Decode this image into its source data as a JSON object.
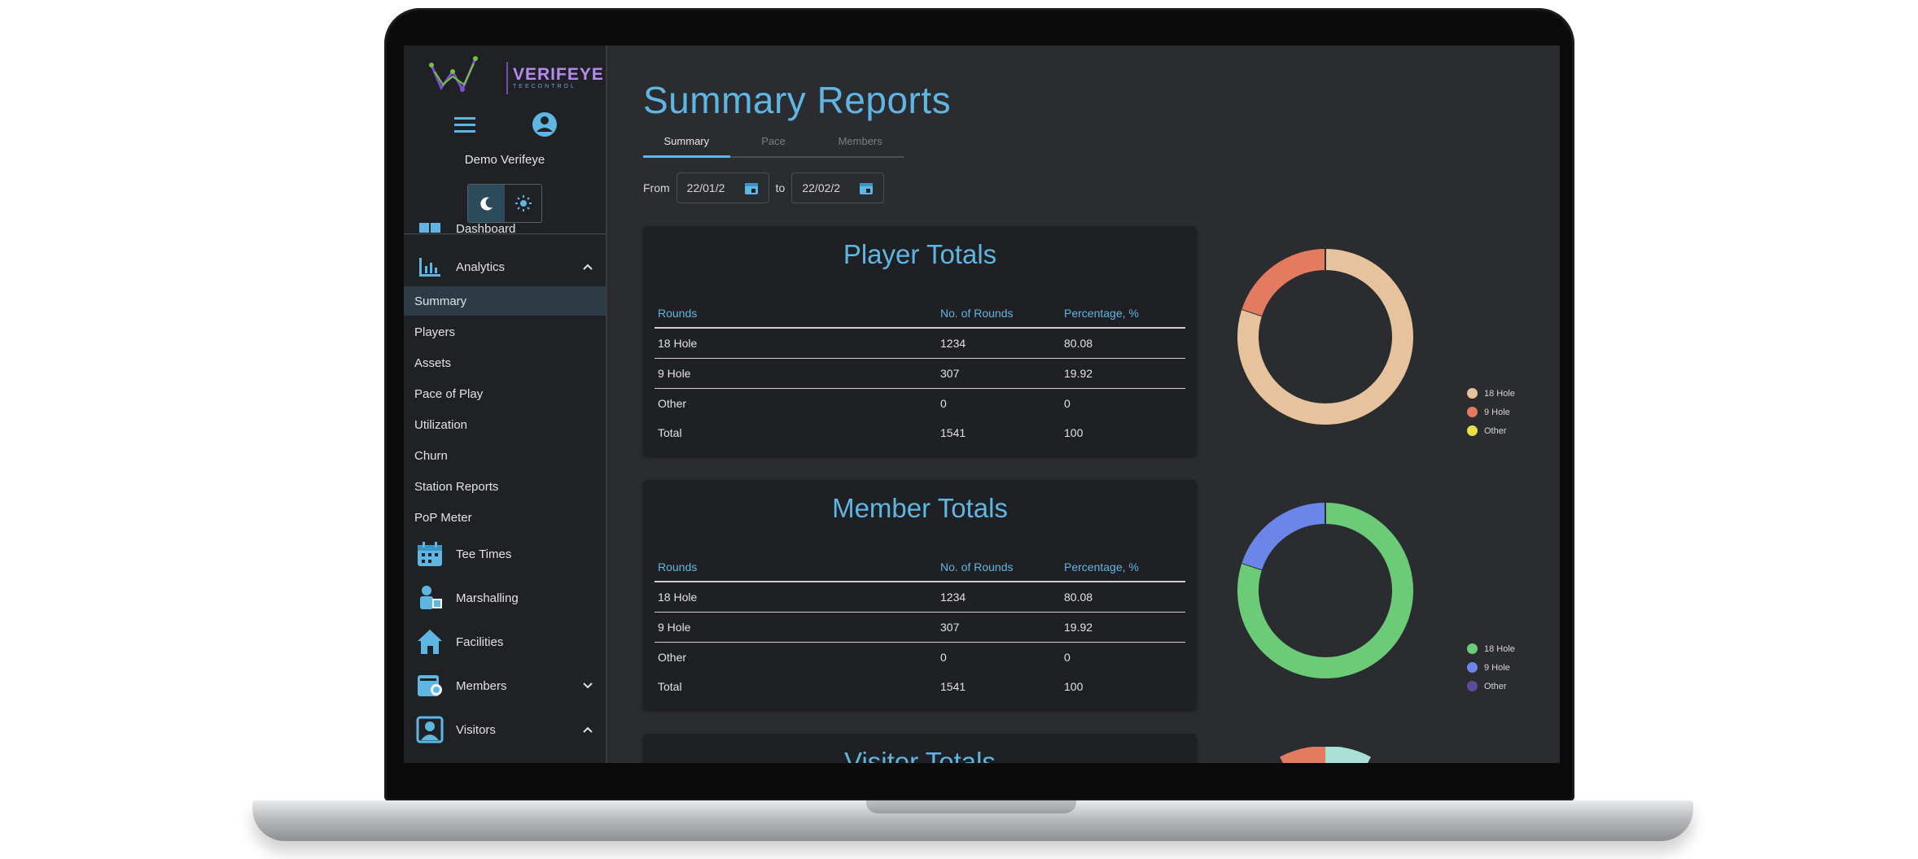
{
  "app": {
    "brand": "VERIFEYE",
    "brand_sub": "TEECONTROL",
    "user_name": "Demo Verifeye"
  },
  "sidebar": {
    "partial_top": "Dashboard",
    "analytics_label": "Analytics",
    "sub_items": [
      "Summary",
      "Players",
      "Assets",
      "Pace of Play",
      "Utilization",
      "Churn",
      "Station Reports",
      "PoP Meter"
    ],
    "active_sub": "Summary",
    "items": [
      {
        "label": "Tee Times",
        "icon": "calendar-icon"
      },
      {
        "label": "Marshalling",
        "icon": "marshal-icon"
      },
      {
        "label": "Facilities",
        "icon": "home-icon"
      },
      {
        "label": "Members",
        "icon": "members-icon",
        "chevron": "down"
      },
      {
        "label": "Visitors",
        "icon": "visitors-icon",
        "chevron": "up"
      }
    ]
  },
  "main": {
    "title": "Summary Reports",
    "tabs": [
      {
        "label": "Summary",
        "active": true
      },
      {
        "label": "Pace",
        "active": false
      },
      {
        "label": "Members",
        "active": false
      }
    ],
    "date_from_label": "From",
    "date_from": "22/01/2",
    "date_to_label": "to",
    "date_to": "22/02/2"
  },
  "tables": [
    {
      "title": "Player Totals",
      "headers": [
        "Rounds",
        "No. of Rounds",
        "Percentage, %"
      ],
      "rows": [
        [
          "18 Hole",
          "1234",
          "80.08"
        ],
        [
          "9 Hole",
          "307",
          "19.92"
        ],
        [
          "Other",
          "0",
          "0"
        ],
        [
          "Total",
          "1541",
          "100"
        ]
      ]
    },
    {
      "title": "Member Totals",
      "headers": [
        "Rounds",
        "No. of Rounds",
        "Percentage, %"
      ],
      "rows": [
        [
          "18 Hole",
          "1234",
          "80.08"
        ],
        [
          "9 Hole",
          "307",
          "19.92"
        ],
        [
          "Other",
          "0",
          "0"
        ],
        [
          "Total",
          "1541",
          "100"
        ]
      ]
    },
    {
      "title": "Visitor Totals"
    }
  ],
  "charts": [
    {
      "legend": [
        "18 Hole",
        "9 Hole",
        "Other"
      ],
      "values": [
        80.08,
        19.92,
        0
      ],
      "colors": [
        "#e6c39c",
        "#e47a5f",
        "#e8e046"
      ]
    },
    {
      "legend": [
        "18 Hole",
        "9 Hole",
        "Other"
      ],
      "values": [
        80.08,
        19.92,
        0
      ],
      "colors": [
        "#6bcb77",
        "#6b86e8",
        "#5b4aa0"
      ]
    }
  ]
}
